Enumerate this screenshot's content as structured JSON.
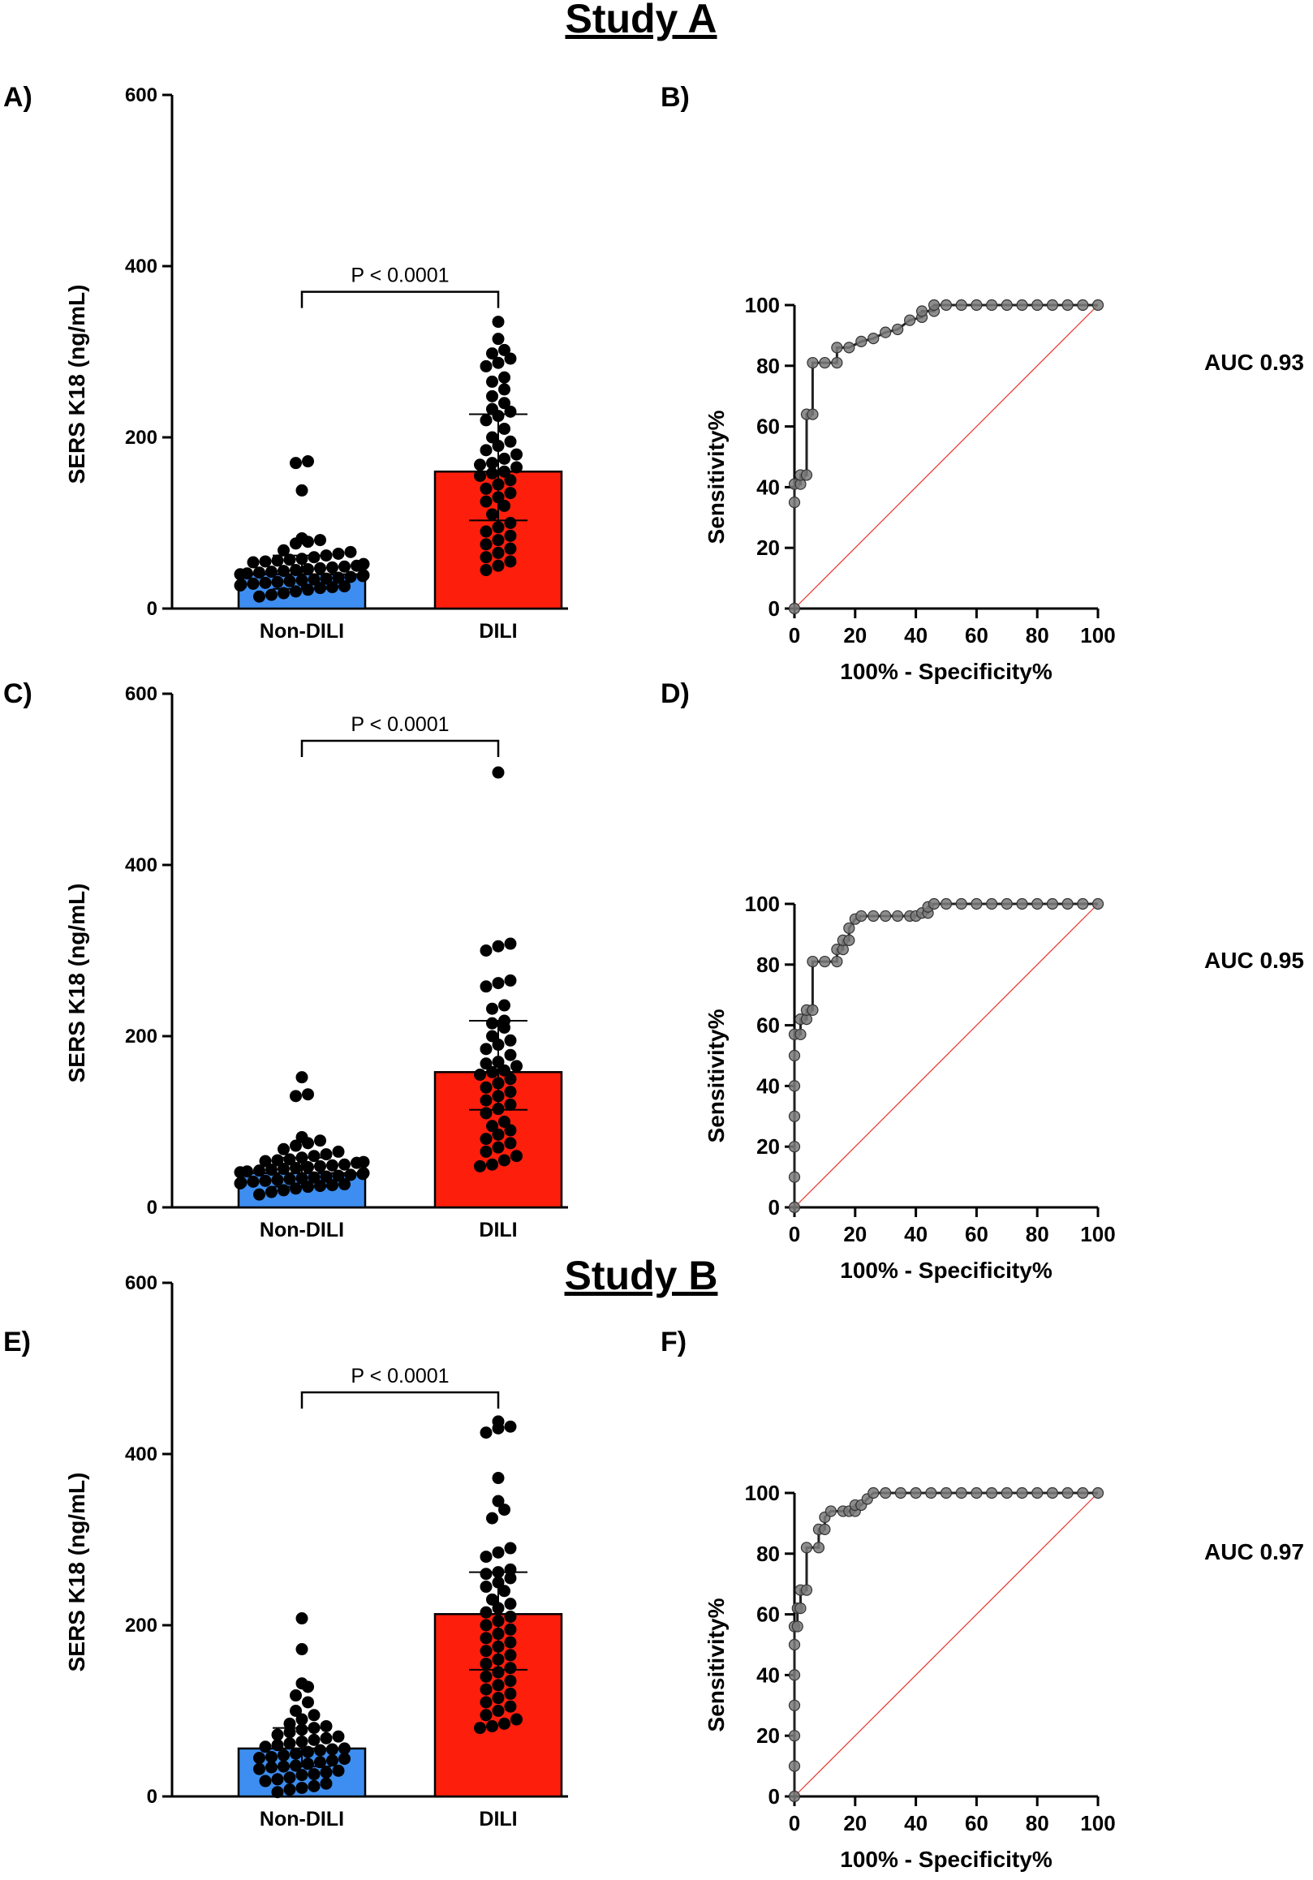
{
  "figure": {
    "study_a_title": "Study A",
    "study_b_title": "Study B"
  },
  "colors": {
    "non_dili": "#3d8ef0",
    "dili": "#fe1e0c",
    "dots": "#000000",
    "roc_line": "#222222",
    "roc_marker": "#7a7a7a",
    "diagonal": "#e8342b"
  },
  "chart_data": [
    {
      "panel": "A)",
      "type": "bar",
      "ylabel": "SERS K18 (ng/mL)",
      "ylim": [
        0,
        600
      ],
      "yticks": [
        0,
        200,
        400,
        600
      ],
      "categories": [
        "Non-DILI",
        "DILI"
      ],
      "values": [
        40,
        160
      ],
      "error_bars": [
        [
          23,
          62
        ],
        [
          103,
          227
        ]
      ],
      "significance": "P < 0.0001",
      "points": {
        "Non-DILI": [
          170,
          172,
          138,
          82,
          80,
          78,
          76,
          68,
          66,
          64,
          62,
          60,
          58,
          57,
          56,
          55,
          54,
          52,
          50,
          49,
          48,
          47,
          46,
          45,
          44,
          43,
          42,
          41,
          40,
          39,
          38,
          37,
          36,
          35,
          34,
          33,
          32,
          31,
          30,
          29,
          28,
          27,
          26,
          25,
          24,
          22,
          20,
          18,
          16,
          14
        ],
        "DILI": [
          335,
          315,
          302,
          298,
          292,
          287,
          283,
          270,
          265,
          256,
          248,
          240,
          233,
          230,
          225,
          220,
          210,
          200,
          195,
          190,
          185,
          180,
          175,
          170,
          168,
          165,
          160,
          158,
          155,
          150,
          145,
          140,
          135,
          130,
          125,
          120,
          110,
          100,
          95,
          90,
          85,
          80,
          75,
          70,
          65,
          60,
          55,
          50,
          45
        ]
      }
    },
    {
      "panel": "B)",
      "type": "line",
      "xlabel": "100% - Specificity%",
      "ylabel": "Sensitivity%",
      "xlim": [
        0,
        100
      ],
      "ylim": [
        0,
        100
      ],
      "xticks": [
        0,
        20,
        40,
        60,
        80,
        100
      ],
      "yticks": [
        0,
        20,
        40,
        60,
        80,
        100
      ],
      "auc": "AUC 0.93",
      "x": [
        0,
        0,
        0,
        2,
        2,
        4,
        4,
        6,
        6,
        10,
        14,
        14,
        18,
        22,
        26,
        30,
        34,
        38,
        42,
        42,
        46,
        46,
        50,
        55,
        60,
        65,
        70,
        75,
        80,
        85,
        90,
        95,
        100
      ],
      "y": [
        0,
        35,
        41,
        41,
        44,
        44,
        64,
        64,
        81,
        81,
        81,
        86,
        86,
        88,
        89,
        91,
        92,
        95,
        96,
        98,
        98,
        100,
        100,
        100,
        100,
        100,
        100,
        100,
        100,
        100,
        100,
        100,
        100
      ]
    },
    {
      "panel": "C)",
      "type": "bar",
      "ylabel": "SERS K18 (ng/mL)",
      "ylim": [
        0,
        600
      ],
      "yticks": [
        0,
        200,
        400,
        600
      ],
      "categories": [
        "Non-DILI",
        "DILI"
      ],
      "values": [
        40,
        158
      ],
      "error_bars": [
        [
          24,
          58
        ],
        [
          114,
          218
        ]
      ],
      "significance": "P < 0.0001",
      "points": {
        "Non-DILI": [
          152,
          132,
          130,
          82,
          78,
          75,
          72,
          68,
          65,
          62,
          60,
          58,
          56,
          55,
          54,
          53,
          52,
          50,
          49,
          48,
          47,
          46,
          45,
          44,
          43,
          42,
          41,
          40,
          39,
          38,
          37,
          36,
          35,
          34,
          33,
          32,
          31,
          30,
          29,
          28,
          27,
          26,
          25,
          24,
          22,
          20,
          18,
          15
        ],
        "DILI": [
          508,
          308,
          305,
          300,
          265,
          262,
          258,
          236,
          232,
          218,
          215,
          210,
          200,
          195,
          190,
          185,
          178,
          170,
          168,
          165,
          160,
          158,
          155,
          150,
          145,
          140,
          135,
          130,
          125,
          120,
          115,
          110,
          100,
          95,
          90,
          85,
          80,
          75,
          70,
          65,
          60,
          55,
          50,
          48
        ]
      }
    },
    {
      "panel": "D)",
      "type": "line",
      "xlabel": "100% - Specificity%",
      "ylabel": "Sensitivity%",
      "xlim": [
        0,
        100
      ],
      "ylim": [
        0,
        100
      ],
      "xticks": [
        0,
        20,
        40,
        60,
        80,
        100
      ],
      "yticks": [
        0,
        20,
        40,
        60,
        80,
        100
      ],
      "auc": "AUC 0.95",
      "x": [
        0,
        0,
        0,
        0,
        0,
        0,
        0,
        2,
        2,
        4,
        4,
        6,
        6,
        10,
        14,
        14,
        16,
        16,
        18,
        18,
        20,
        22,
        26,
        30,
        34,
        38,
        40,
        42,
        44,
        44,
        46,
        50,
        55,
        60,
        65,
        70,
        75,
        80,
        85,
        90,
        95,
        100
      ],
      "y": [
        0,
        10,
        20,
        30,
        40,
        50,
        57,
        57,
        62,
        62,
        65,
        65,
        81,
        81,
        81,
        85,
        85,
        88,
        88,
        92,
        95,
        96,
        96,
        96,
        96,
        96,
        96,
        97,
        97,
        99,
        100,
        100,
        100,
        100,
        100,
        100,
        100,
        100,
        100,
        100,
        100,
        100
      ]
    },
    {
      "panel": "E)",
      "type": "bar",
      "ylabel": "SERS K18 (ng/mL)",
      "ylim": [
        0,
        600
      ],
      "yticks": [
        0,
        200,
        400,
        600
      ],
      "categories": [
        "Non-DILI",
        "DILI"
      ],
      "values": [
        56,
        213
      ],
      "error_bars": [
        [
          35,
          80
        ],
        [
          148,
          262
        ]
      ],
      "significance": "P < 0.0001",
      "points": {
        "Non-DILI": [
          208,
          172,
          132,
          128,
          118,
          110,
          100,
          95,
          90,
          85,
          82,
          80,
          78,
          75,
          72,
          70,
          68,
          66,
          64,
          62,
          60,
          58,
          56,
          55,
          54,
          52,
          50,
          48,
          46,
          45,
          44,
          42,
          40,
          38,
          36,
          35,
          34,
          32,
          30,
          28,
          26,
          25,
          22,
          20,
          18,
          15,
          12,
          10,
          8,
          5
        ],
        "DILI": [
          438,
          432,
          430,
          425,
          372,
          345,
          335,
          325,
          290,
          285,
          280,
          265,
          262,
          260,
          255,
          250,
          245,
          240,
          230,
          225,
          220,
          215,
          210,
          205,
          200,
          195,
          190,
          185,
          180,
          175,
          170,
          165,
          160,
          155,
          150,
          145,
          140,
          135,
          130,
          125,
          120,
          115,
          110,
          105,
          100,
          95,
          90,
          85,
          82,
          80
        ]
      }
    },
    {
      "panel": "F)",
      "type": "line",
      "xlabel": "100% - Specificity%",
      "ylabel": "Sensitivity%",
      "xlim": [
        0,
        100
      ],
      "ylim": [
        0,
        100
      ],
      "xticks": [
        0,
        20,
        40,
        60,
        80,
        100
      ],
      "yticks": [
        0,
        20,
        40,
        60,
        80,
        100
      ],
      "auc": "AUC 0.97",
      "x": [
        0,
        0,
        0,
        0,
        0,
        0,
        0,
        1,
        1,
        2,
        2,
        4,
        4,
        8,
        8,
        10,
        10,
        12,
        16,
        18,
        20,
        20,
        22,
        24,
        26,
        30,
        35,
        40,
        45,
        50,
        55,
        60,
        65,
        70,
        75,
        80,
        85,
        90,
        95,
        100
      ],
      "y": [
        0,
        10,
        20,
        30,
        40,
        50,
        56,
        56,
        62,
        62,
        68,
        68,
        82,
        82,
        88,
        88,
        92,
        94,
        94,
        94,
        94,
        96,
        96,
        98,
        100,
        100,
        100,
        100,
        100,
        100,
        100,
        100,
        100,
        100,
        100,
        100,
        100,
        100,
        100,
        100
      ]
    }
  ]
}
